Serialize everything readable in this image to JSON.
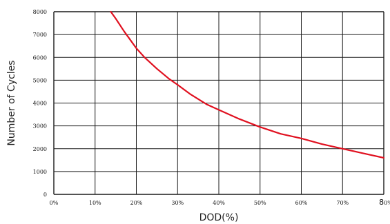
{
  "chart_data": {
    "type": "line",
    "title": "",
    "xlabel": "DOD(%)",
    "ylabel": "Number of Cycles",
    "xlim": [
      0,
      80
    ],
    "ylim": [
      0,
      8000
    ],
    "grid": true,
    "legend": "none",
    "x_ticks": [
      "0%",
      "10%",
      "20%",
      "30%",
      "40%",
      "50%",
      "60%",
      "70%",
      "80%"
    ],
    "y_ticks": [
      "0",
      "1000",
      "2000",
      "3000",
      "4000",
      "5000",
      "6000",
      "7000",
      "8000"
    ],
    "series": [
      {
        "color": "#e0101f",
        "x": [
          13.8,
          15,
          17,
          19,
          20,
          22,
          25,
          28,
          30,
          33,
          37,
          40,
          45,
          50,
          55,
          60,
          65,
          70,
          75,
          80
        ],
        "y": [
          8000,
          7700,
          7150,
          6650,
          6400,
          6000,
          5500,
          5050,
          4800,
          4400,
          3950,
          3700,
          3300,
          2950,
          2650,
          2450,
          2200,
          2000,
          1800,
          1600
        ]
      }
    ]
  }
}
